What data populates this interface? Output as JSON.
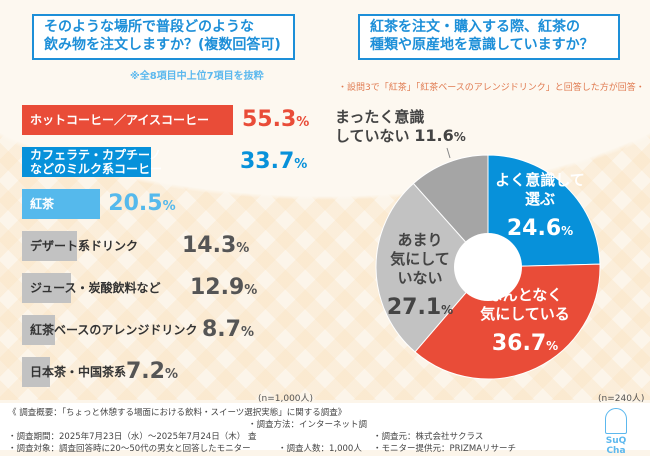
{
  "left": {
    "question_line1": "そのような場所で普段どのような",
    "question_line2": "飲み物を注文しますか？(複数回答可)",
    "note": "※全8項目中上位7項目を抜粋",
    "n": "(n=1,000人)"
  },
  "right": {
    "question_line1": "紅茶を注文・購入する際、紅茶の",
    "question_line2": "種類や原産地を意識していますか？",
    "subnote": "・設問3で「紅茶」「紅茶ベースのアレンジドリンク」と回答した方が回答・",
    "n": "(n=240人)"
  },
  "colors": {
    "red": "#e94c38",
    "blue": "#0791da",
    "lightblue": "#55b9ec",
    "gray": "#c2c2c2",
    "darkgray": "#a5a5a5"
  },
  "chart_data": [
    {
      "type": "bar",
      "orientation": "horizontal",
      "unit": "%",
      "categories": [
        "ホットコーヒー／アイスコーヒー",
        "カフェラテ・カプチーノなどのミルク系コーヒー",
        "紅茶",
        "デザート系ドリンク",
        "ジュース・炭酸飲料など",
        "紅茶ベースのアレンジドリンク",
        "日本茶・中国茶系"
      ],
      "values": [
        55.3,
        33.7,
        20.5,
        14.3,
        12.9,
        8.7,
        7.2
      ],
      "labels": [
        [
          "ホットコーヒー／アイスコーヒー"
        ],
        [
          "カフェラテ・カプチーノ",
          "などのミルク系コーヒー"
        ],
        [
          "紅茶"
        ],
        [
          "デザート系ドリンク"
        ],
        [
          "ジュース・炭酸飲料など"
        ],
        [
          "紅茶ベースのアレンジドリンク"
        ],
        [
          "日本茶・中国茶系"
        ]
      ],
      "value_labels": [
        "55.3",
        "33.7",
        "20.5",
        "14.3",
        "12.9",
        "8.7",
        "7.2"
      ]
    },
    {
      "type": "pie",
      "donut": true,
      "unit": "%",
      "categories": [
        "よく意識して選ぶ",
        "なんとなく気にしている",
        "あまり気にしていない",
        "まったく意識していない"
      ],
      "values": [
        24.6,
        36.7,
        27.1,
        11.6
      ],
      "labels": [
        [
          "よく意識して",
          "選ぶ"
        ],
        [
          "なんとなく",
          "気にしている"
        ],
        [
          "あまり",
          "気にして",
          "いない"
        ],
        [
          "まったく意識",
          "していない"
        ]
      ],
      "value_labels": [
        "24.6",
        "36.7",
        "27.1",
        "11.6"
      ]
    }
  ],
  "footer": {
    "title": "《 調査概要：「ちょっと休憩する場面における飲料・スイーツ選択実態」に関する調査》",
    "period": "・調査期間：2025年7月23日（水）～2025年7月24日（木）",
    "method": "・調査方法：インターネット調査",
    "source": "・調査元：株式会社サクラス",
    "target": "・調査対象：調査回答時に20～50代の男女と回答したモニター",
    "count": "・調査人数：1,000人",
    "provider": "・モニター提供元：PRIZMAリサーチ",
    "logo": "SuQ Cha"
  }
}
